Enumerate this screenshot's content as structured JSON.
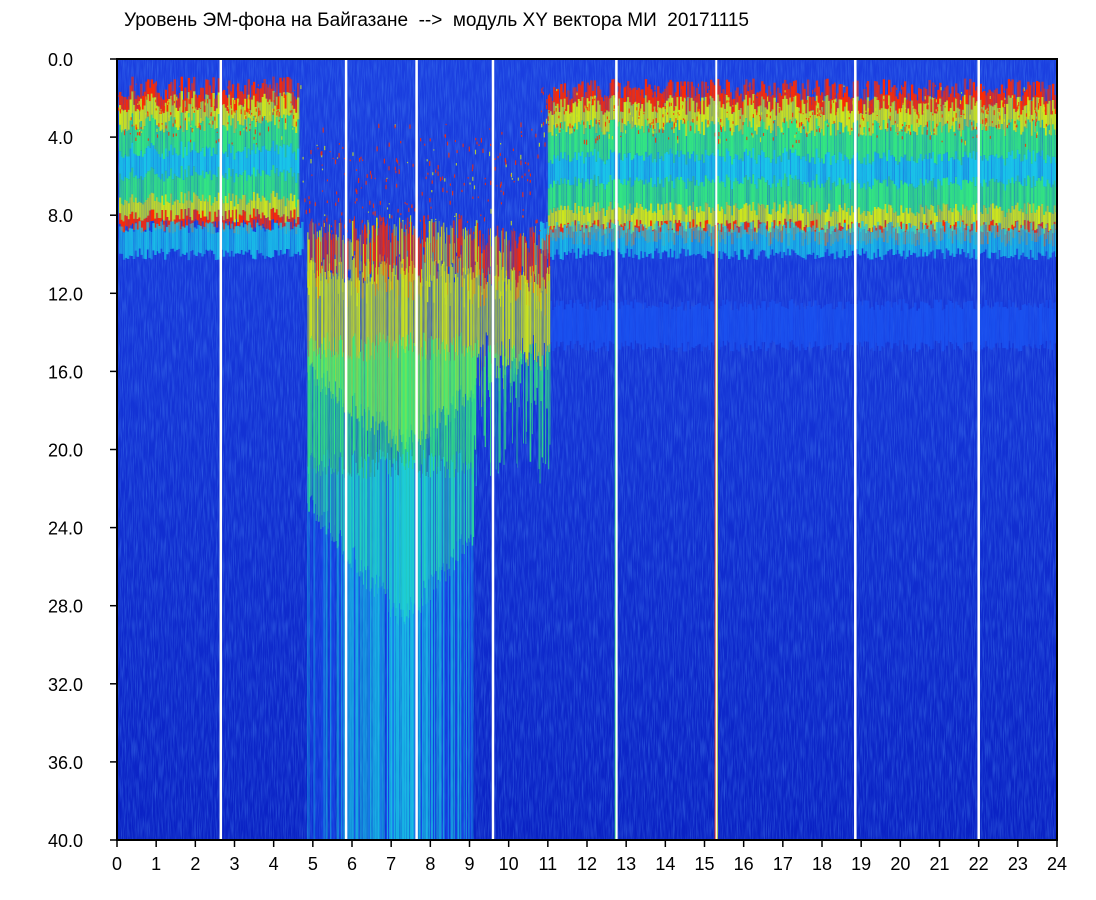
{
  "chart_data": {
    "type": "heatmap",
    "title": "Уровень ЭМ-фона на Байгазане  -->  модуль XY вектора МИ  20171115",
    "xlabel": "",
    "ylabel": "",
    "xlim": [
      0,
      24
    ],
    "ylim": [
      0,
      40
    ],
    "y_inverted": true,
    "x_ticks": [
      "0",
      "1",
      "2",
      "3",
      "4",
      "5",
      "6",
      "7",
      "8",
      "9",
      "10",
      "11",
      "12",
      "13",
      "14",
      "15",
      "16",
      "17",
      "18",
      "19",
      "20",
      "21",
      "22",
      "23",
      "24"
    ],
    "y_ticks": [
      "0.0",
      "4.0",
      "8.0",
      "12.0",
      "16.0",
      "20.0",
      "24.0",
      "28.0",
      "32.0",
      "36.0",
      "40.0"
    ],
    "colorscale": [
      "#0a1fc8",
      "#1a52f0",
      "#19c8e8",
      "#33e880",
      "#cfe81a",
      "#ff2a00",
      "#ffffff"
    ],
    "gaps_x": [
      2.65,
      5.85,
      7.65,
      9.6,
      12.75,
      15.3,
      18.85,
      22.0
    ],
    "notes_bands": [
      {
        "x_from": 0.05,
        "x_to": 4.6,
        "y_top": 1.5,
        "y_bottom": 8.5,
        "level": "high"
      },
      {
        "x_from": 4.9,
        "x_to": 8.9,
        "y_top": 8.0,
        "y_bottom": 40.0,
        "level": "vlf-burst"
      },
      {
        "x_from": 11.0,
        "x_to": 24.0,
        "y_top": 1.5,
        "y_bottom": 9.0,
        "level": "high"
      },
      {
        "x_from": 11.0,
        "x_to": 24.0,
        "y_top": 12.0,
        "y_bottom": 14.5,
        "level": "mid"
      }
    ]
  }
}
